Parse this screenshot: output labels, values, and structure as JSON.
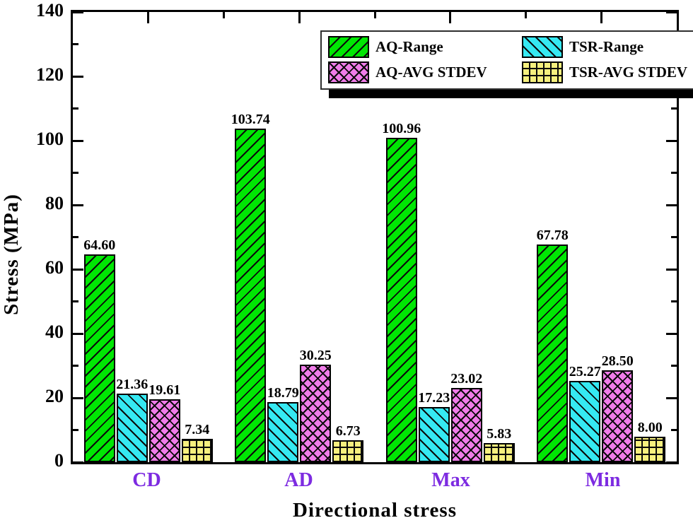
{
  "chart_data": {
    "type": "bar",
    "title": "",
    "xlabel": "Directional stress",
    "ylabel": "Stress (MPa)",
    "categories": [
      "CD",
      "AD",
      "Max",
      "Min"
    ],
    "series": [
      {
        "name": "AQ-Range",
        "color": "#00e703",
        "hatch": "diagonal-forward",
        "values": [
          64.6,
          103.74,
          100.96,
          67.78
        ]
      },
      {
        "name": "TSR-Range",
        "color": "#35e9f2",
        "hatch": "diagonal-backward",
        "values": [
          21.36,
          18.79,
          17.23,
          25.27
        ]
      },
      {
        "name": "AQ-AVG STDEV",
        "color": "#f07ce9",
        "hatch": "diagonal-cross",
        "values": [
          19.61,
          30.25,
          23.02,
          28.5
        ]
      },
      {
        "name": "TSR-AVG STDEV",
        "color": "#f6f07e",
        "hatch": "grid",
        "values": [
          7.34,
          6.73,
          5.83,
          8.0
        ]
      }
    ],
    "value_label_decimals": 2,
    "ylim": [
      0,
      140
    ],
    "yticks_major": [
      0,
      20,
      40,
      60,
      80,
      100,
      120,
      140
    ],
    "ytick_minor_step": 10,
    "grid": false,
    "legend_position": "top-center",
    "category_label_color": "#7d2be1",
    "axis_color": "#000000"
  }
}
